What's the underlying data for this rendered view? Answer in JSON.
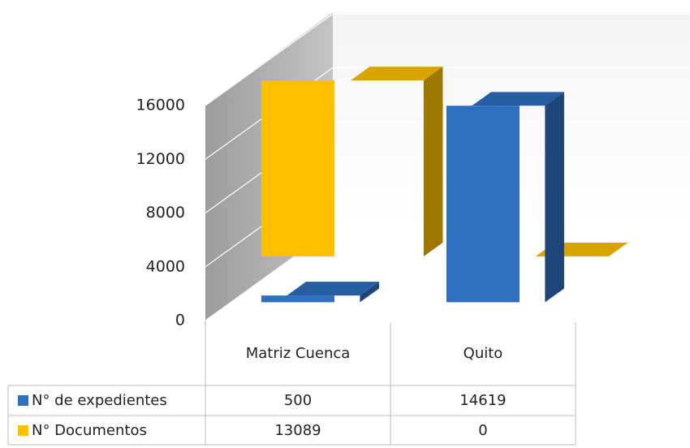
{
  "chart_data": {
    "type": "bar3d",
    "categories": [
      "Matriz Cuenca",
      "Quito"
    ],
    "series": [
      {
        "name": "N° de expedientes",
        "color": "#2e6fc0",
        "values": [
          500,
          14619
        ]
      },
      {
        "name": "N° Documentos",
        "color": "#ffc000",
        "values": [
          13089,
          0
        ]
      }
    ],
    "ylim": [
      0,
      16000
    ],
    "yticks": [
      0,
      4000,
      8000,
      12000,
      16000
    ],
    "grid": true
  }
}
